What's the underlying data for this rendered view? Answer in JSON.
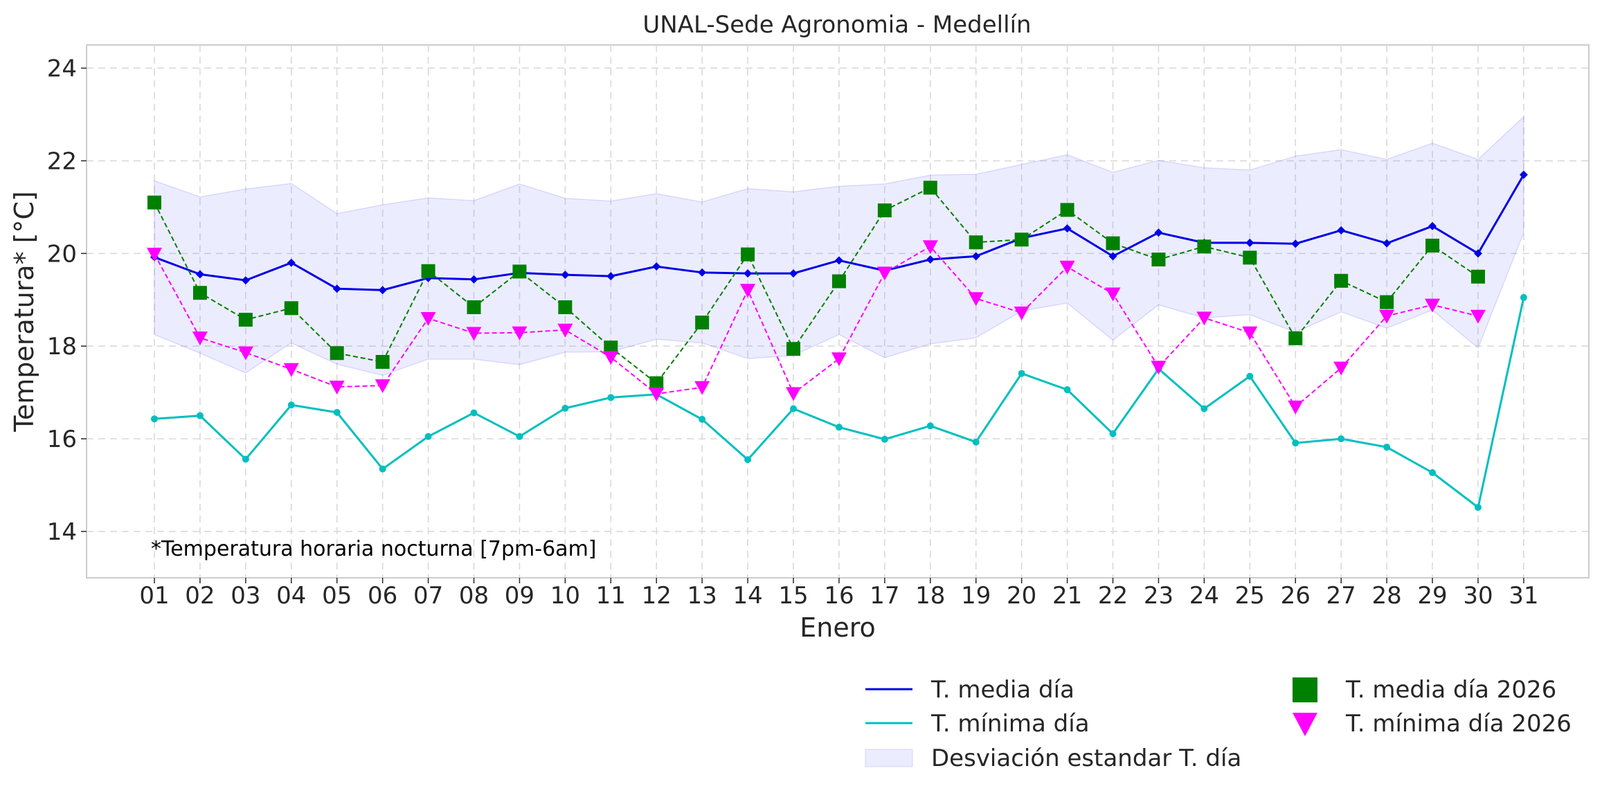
{
  "chart_data": {
    "type": "line",
    "title": "UNAL-Sede Agronomia - Medellín",
    "xlabel": "Enero",
    "ylabel": "Temperatura* [°C]",
    "ylim": [
      13.0,
      24.5
    ],
    "yticks": [
      "14",
      "16",
      "18",
      "20",
      "22",
      "24"
    ],
    "grid": true,
    "annotation": "*Temperatura horaria nocturna [7pm-6am]",
    "categories": [
      "01",
      "02",
      "03",
      "04",
      "05",
      "06",
      "07",
      "08",
      "09",
      "10",
      "11",
      "12",
      "13",
      "14",
      "15",
      "16",
      "17",
      "18",
      "19",
      "20",
      "21",
      "22",
      "23",
      "24",
      "25",
      "26",
      "27",
      "28",
      "29",
      "30",
      "31"
    ],
    "series": [
      {
        "name": "T. media día",
        "style": "line-diamond",
        "color": "#0000e6",
        "values": [
          19.92,
          19.55,
          19.42,
          19.8,
          19.24,
          19.21,
          19.47,
          19.44,
          19.58,
          19.54,
          19.51,
          19.72,
          19.59,
          19.57,
          19.57,
          19.85,
          19.63,
          19.87,
          19.94,
          20.33,
          20.54,
          19.94,
          20.45,
          20.23,
          20.23,
          20.21,
          20.5,
          20.22,
          20.59,
          20.0,
          21.7
        ]
      },
      {
        "name": "T. mínima día",
        "style": "line-dot",
        "color": "#00bfbf",
        "values": [
          16.43,
          16.5,
          15.56,
          16.73,
          16.57,
          15.35,
          16.05,
          16.56,
          16.05,
          16.66,
          16.89,
          16.96,
          16.42,
          15.55,
          16.65,
          16.25,
          15.99,
          16.28,
          15.93,
          17.41,
          17.06,
          16.11,
          17.51,
          16.65,
          17.35,
          15.91,
          16.0,
          15.82,
          15.27,
          14.52,
          19.05
        ]
      },
      {
        "name": "Desviación estandar T. día",
        "style": "band",
        "color": "#8080ff",
        "upper": [
          21.57,
          21.22,
          21.39,
          21.51,
          20.86,
          21.05,
          21.2,
          21.14,
          21.5,
          21.19,
          21.13,
          21.29,
          21.11,
          21.4,
          21.33,
          21.45,
          21.5,
          21.69,
          21.71,
          21.92,
          22.13,
          21.75,
          22.01,
          21.85,
          21.8,
          22.1,
          22.24,
          22.03,
          22.38,
          22.03,
          22.95
        ],
        "lower": [
          18.25,
          17.85,
          17.42,
          18.07,
          17.61,
          17.37,
          17.72,
          17.72,
          17.6,
          17.87,
          17.88,
          18.15,
          18.07,
          17.73,
          17.8,
          18.25,
          17.75,
          18.05,
          18.18,
          18.76,
          18.93,
          18.13,
          18.89,
          18.61,
          18.68,
          18.3,
          18.74,
          18.39,
          18.78,
          17.96,
          20.45
        ]
      },
      {
        "name": "T. media día 2026",
        "style": "dashed-square",
        "color": "#008000",
        "values": [
          21.1,
          19.15,
          18.57,
          18.82,
          17.85,
          17.66,
          19.62,
          18.84,
          19.61,
          18.84,
          17.97,
          17.2,
          18.51,
          19.98,
          17.94,
          19.4,
          20.93,
          21.42,
          20.24,
          20.3,
          20.94,
          20.22,
          19.87,
          20.15,
          19.91,
          18.17,
          19.41,
          18.95,
          20.17,
          19.5,
          null
        ]
      },
      {
        "name": "T. mínima día 2026",
        "style": "dashed-triangle",
        "color": "#ff00ff",
        "values": [
          19.99,
          18.18,
          17.86,
          17.5,
          17.12,
          17.15,
          18.6,
          18.28,
          18.29,
          18.35,
          17.76,
          16.97,
          17.11,
          19.21,
          16.98,
          17.73,
          19.58,
          20.15,
          19.03,
          18.72,
          19.71,
          19.13,
          17.55,
          18.61,
          18.29,
          16.69,
          17.53,
          18.65,
          18.89,
          18.65,
          null
        ]
      }
    ],
    "legend": {
      "placement": "bottom-right",
      "left_column": [
        "T. media día",
        "T. mínima día",
        "Desviación estandar T. día"
      ],
      "right_column": [
        "T. media día 2026",
        "T. mínima día 2026"
      ]
    }
  }
}
